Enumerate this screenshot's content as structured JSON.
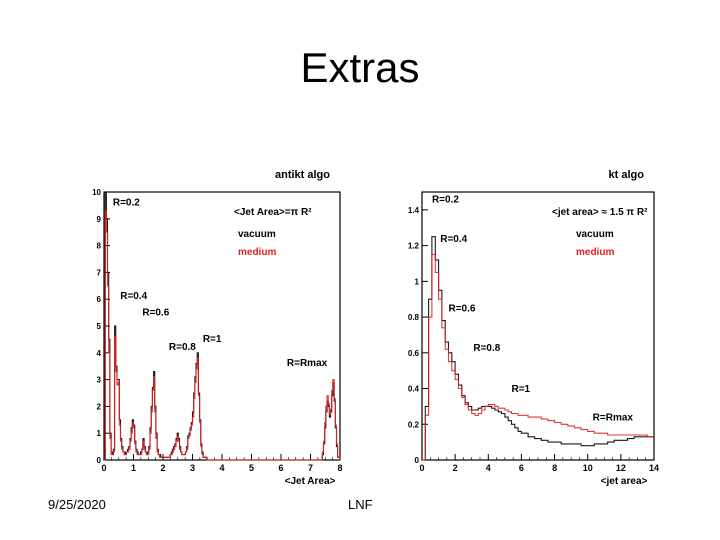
{
  "slide": {
    "title": "Extras",
    "footer_date": "9/25/2020",
    "footer_org": "LNF"
  },
  "colors": {
    "vacuum": "#000000",
    "medium": "#e02020"
  },
  "chart_data": [
    {
      "type": "line",
      "id": "antikt",
      "title": "antikt algo",
      "area_label": "<Jet Area>=π R²",
      "xlabel": "<Jet Area>",
      "ylabel": "",
      "xlim": [
        0,
        8
      ],
      "ylim": [
        0,
        10
      ],
      "xticks": [
        "0",
        "1",
        "2",
        "3",
        "4",
        "5",
        "6",
        "7",
        "8"
      ],
      "yticks": [
        "0",
        "1",
        "2",
        "3",
        "4",
        "5",
        "6",
        "7",
        "8",
        "9",
        "10"
      ],
      "legend": [
        "vacuum",
        "medium"
      ],
      "r_labels": [
        {
          "text": "R=0.2",
          "x": 0.3,
          "y": 9.5
        },
        {
          "text": "R=0.4",
          "x": 0.55,
          "y": 6.0
        },
        {
          "text": "R=0.6",
          "x": 1.3,
          "y": 5.4
        },
        {
          "text": "R=0.8",
          "x": 2.2,
          "y": 4.1
        },
        {
          "text": "R=1",
          "x": 3.35,
          "y": 4.4
        },
        {
          "text": "R=Rmax",
          "x": 6.2,
          "y": 3.5
        }
      ],
      "series": [
        {
          "name": "vacuum",
          "x": [
            0.0,
            0.04,
            0.08,
            0.12,
            0.16,
            0.2,
            0.24,
            0.28,
            0.32,
            0.36,
            0.4,
            0.44,
            0.48,
            0.52,
            0.56,
            0.6,
            0.64,
            0.68,
            0.72,
            0.76,
            0.8,
            0.84,
            0.88,
            0.92,
            0.96,
            1.0,
            1.04,
            1.08,
            1.12,
            1.16,
            1.2,
            1.24,
            1.28,
            1.32,
            1.36,
            1.4,
            1.44,
            1.48,
            1.52,
            1.56,
            1.6,
            1.64,
            1.68,
            1.72,
            1.76,
            1.8,
            1.84,
            1.88,
            1.92,
            1.96,
            2.0,
            2.04,
            2.08,
            2.12,
            2.16,
            2.2,
            2.24,
            2.28,
            2.32,
            2.36,
            2.4,
            2.44,
            2.48,
            2.52,
            2.56,
            2.6,
            2.64,
            2.68,
            2.72,
            2.76,
            2.8,
            2.84,
            2.88,
            2.92,
            2.96,
            3.0,
            3.04,
            3.08,
            3.12,
            3.16,
            3.2,
            3.24,
            3.28,
            3.32,
            3.36,
            3.4,
            3.44,
            3.48,
            3.52,
            3.56,
            3.6,
            3.64,
            3.68,
            3.72,
            3.76,
            3.8,
            3.84,
            3.88,
            3.92,
            3.96,
            4.0,
            4.4,
            4.8,
            5.2,
            5.6,
            6.0,
            6.4,
            6.8,
            7.2,
            7.4,
            7.44,
            7.48,
            7.52,
            7.56,
            7.6,
            7.64,
            7.68,
            7.72,
            7.76,
            7.8,
            7.84,
            7.88,
            7.92,
            8.0
          ],
          "y": [
            0.0,
            10.0,
            9.0,
            7.0,
            4.5,
            1.0,
            0.3,
            0.2,
            0.4,
            5.0,
            3.5,
            3.0,
            3.0,
            1.5,
            0.8,
            0.5,
            0.3,
            0.3,
            0.2,
            0.3,
            0.4,
            0.5,
            0.8,
            1.2,
            1.5,
            1.3,
            0.7,
            0.4,
            0.3,
            0.2,
            0.2,
            0.3,
            0.4,
            0.8,
            0.5,
            0.3,
            0.2,
            0.3,
            0.5,
            1.2,
            2.0,
            2.7,
            3.3,
            2.0,
            1.0,
            0.4,
            0.2,
            0.2,
            0.1,
            0.1,
            0.1,
            0.1,
            0.1,
            0.1,
            0.1,
            0.1,
            0.2,
            0.3,
            0.4,
            0.5,
            0.6,
            0.8,
            1.0,
            0.8,
            0.5,
            0.3,
            0.2,
            0.2,
            0.2,
            0.3,
            0.5,
            0.9,
            1.0,
            1.2,
            1.4,
            1.8,
            2.5,
            3.1,
            3.6,
            4.0,
            2.5,
            1.5,
            0.6,
            0.3,
            0.1,
            0.1,
            0.1,
            0.0,
            0.0,
            0.0,
            0.0,
            0.0,
            0.0,
            0.0,
            0.0,
            0.0,
            0.0,
            0.0,
            0.0,
            0.0,
            0.0,
            0.0,
            0.0,
            0.0,
            0.0,
            0.0,
            0.0,
            0.0,
            0.0,
            0.2,
            0.6,
            1.2,
            1.8,
            2.2,
            2.0,
            1.6,
            1.8,
            2.4,
            2.9,
            2.2,
            1.2,
            0.5,
            0.1,
            0.0
          ]
        },
        {
          "name": "medium",
          "x": [
            0.0,
            0.04,
            0.08,
            0.12,
            0.16,
            0.2,
            0.24,
            0.28,
            0.32,
            0.36,
            0.4,
            0.44,
            0.48,
            0.52,
            0.56,
            0.6,
            0.64,
            0.68,
            0.72,
            0.76,
            0.8,
            0.84,
            0.88,
            0.92,
            0.96,
            1.0,
            1.04,
            1.08,
            1.12,
            1.16,
            1.2,
            1.24,
            1.28,
            1.32,
            1.36,
            1.4,
            1.44,
            1.48,
            1.52,
            1.56,
            1.6,
            1.64,
            1.68,
            1.72,
            1.76,
            1.8,
            1.84,
            1.88,
            1.92,
            1.96,
            2.0,
            2.04,
            2.08,
            2.12,
            2.16,
            2.2,
            2.24,
            2.28,
            2.32,
            2.36,
            2.4,
            2.44,
            2.48,
            2.52,
            2.56,
            2.6,
            2.64,
            2.68,
            2.72,
            2.76,
            2.8,
            2.84,
            2.88,
            2.92,
            2.96,
            3.0,
            3.04,
            3.08,
            3.12,
            3.16,
            3.2,
            3.24,
            3.28,
            3.32,
            3.36,
            3.4,
            3.44,
            3.48,
            3.52,
            3.56,
            3.6,
            3.64,
            3.68,
            3.72,
            3.76,
            3.8,
            3.84,
            3.88,
            3.92,
            3.96,
            4.0,
            4.4,
            4.8,
            5.2,
            5.6,
            6.0,
            6.4,
            6.8,
            7.2,
            7.4,
            7.44,
            7.48,
            7.52,
            7.56,
            7.6,
            7.64,
            7.68,
            7.72,
            7.76,
            7.8,
            7.84,
            7.88,
            7.92,
            8.0
          ],
          "y": [
            0.0,
            9.3,
            8.5,
            6.5,
            4.0,
            0.8,
            0.2,
            0.2,
            0.3,
            4.6,
            3.3,
            2.8,
            2.9,
            1.3,
            0.7,
            0.4,
            0.3,
            0.2,
            0.2,
            0.3,
            0.3,
            0.4,
            0.7,
            1.0,
            1.4,
            1.2,
            0.6,
            0.3,
            0.2,
            0.2,
            0.2,
            0.2,
            0.4,
            0.7,
            0.4,
            0.3,
            0.2,
            0.2,
            0.4,
            1.0,
            1.8,
            2.6,
            3.1,
            1.8,
            0.8,
            0.3,
            0.2,
            0.1,
            0.1,
            0.1,
            0.1,
            0.1,
            0.1,
            0.1,
            0.1,
            0.1,
            0.2,
            0.2,
            0.3,
            0.4,
            0.5,
            0.7,
            0.9,
            0.7,
            0.4,
            0.3,
            0.2,
            0.2,
            0.2,
            0.3,
            0.4,
            0.8,
            0.9,
            1.1,
            1.3,
            1.6,
            2.3,
            2.9,
            3.4,
            3.8,
            2.4,
            1.4,
            0.5,
            0.2,
            0.1,
            0.1,
            0.1,
            0.0,
            0.0,
            0.0,
            0.0,
            0.0,
            0.0,
            0.0,
            0.0,
            0.0,
            0.0,
            0.0,
            0.0,
            0.0,
            0.0,
            0.0,
            0.0,
            0.0,
            0.0,
            0.0,
            0.0,
            0.0,
            0.0,
            0.3,
            0.7,
            1.4,
            2.0,
            2.4,
            2.1,
            1.7,
            1.9,
            2.6,
            3.0,
            2.3,
            1.3,
            0.6,
            0.1,
            0.0
          ]
        }
      ]
    },
    {
      "type": "line",
      "id": "kt",
      "title": "kt algo",
      "area_label": "<jet area> ≈ 1.5 π R²",
      "xlabel": "<jet area>",
      "ylabel": "",
      "xlim": [
        0,
        14
      ],
      "ylim": [
        0,
        1.5
      ],
      "xticks": [
        "0",
        "2",
        "4",
        "6",
        "8",
        "10",
        "12",
        "14"
      ],
      "yticks": [
        "0",
        "0.2",
        "0.4",
        "0.6",
        "0.8",
        "1",
        "1.2",
        "1.4"
      ],
      "legend": [
        "vacuum",
        "medium"
      ],
      "r_labels": [
        {
          "text": "R=0.2",
          "x": 0.6,
          "y": 1.44
        },
        {
          "text": "R=0.4",
          "x": 1.1,
          "y": 1.22
        },
        {
          "text": "R=0.6",
          "x": 1.6,
          "y": 0.83
        },
        {
          "text": "R=0.8",
          "x": 3.1,
          "y": 0.61
        },
        {
          "text": "R=1",
          "x": 5.4,
          "y": 0.38
        },
        {
          "text": "R=Rmax",
          "x": 10.3,
          "y": 0.22
        }
      ],
      "series": [
        {
          "name": "vacuum",
          "x": [
            0.0,
            0.2,
            0.4,
            0.6,
            0.8,
            1.0,
            1.2,
            1.4,
            1.6,
            1.8,
            2.0,
            2.2,
            2.4,
            2.6,
            2.8,
            3.0,
            3.2,
            3.4,
            3.6,
            3.8,
            4.0,
            4.2,
            4.4,
            4.6,
            4.8,
            5.0,
            5.2,
            5.4,
            5.6,
            5.8,
            6.0,
            6.4,
            6.8,
            7.2,
            7.6,
            8.0,
            8.4,
            8.8,
            9.2,
            9.6,
            10.0,
            10.4,
            10.8,
            11.2,
            11.6,
            12.0,
            12.4,
            12.8,
            13.2,
            13.6,
            14.0
          ],
          "y": [
            0.0,
            0.3,
            0.9,
            1.25,
            1.12,
            0.95,
            0.78,
            0.66,
            0.6,
            0.55,
            0.48,
            0.42,
            0.36,
            0.32,
            0.3,
            0.28,
            0.28,
            0.29,
            0.3,
            0.3,
            0.3,
            0.29,
            0.28,
            0.27,
            0.26,
            0.24,
            0.22,
            0.2,
            0.18,
            0.16,
            0.15,
            0.13,
            0.12,
            0.11,
            0.1,
            0.1,
            0.09,
            0.09,
            0.09,
            0.08,
            0.08,
            0.09,
            0.09,
            0.1,
            0.11,
            0.11,
            0.12,
            0.13,
            0.13,
            0.13,
            0.12
          ]
        },
        {
          "name": "medium",
          "x": [
            0.0,
            0.2,
            0.4,
            0.6,
            0.8,
            1.0,
            1.2,
            1.4,
            1.6,
            1.8,
            2.0,
            2.2,
            2.4,
            2.6,
            2.8,
            3.0,
            3.2,
            3.4,
            3.6,
            3.8,
            4.0,
            4.2,
            4.4,
            4.6,
            4.8,
            5.0,
            5.2,
            5.4,
            5.6,
            5.8,
            6.0,
            6.4,
            6.8,
            7.2,
            7.6,
            8.0,
            8.4,
            8.8,
            9.2,
            9.6,
            10.0,
            10.4,
            10.8,
            11.2,
            11.6,
            12.0,
            12.4,
            12.8,
            13.2,
            13.6,
            14.0
          ],
          "y": [
            0.0,
            0.25,
            0.8,
            1.15,
            1.05,
            0.9,
            0.74,
            0.62,
            0.55,
            0.5,
            0.45,
            0.4,
            0.35,
            0.31,
            0.28,
            0.26,
            0.25,
            0.26,
            0.28,
            0.3,
            0.31,
            0.31,
            0.3,
            0.29,
            0.29,
            0.28,
            0.27,
            0.26,
            0.26,
            0.25,
            0.25,
            0.24,
            0.24,
            0.23,
            0.22,
            0.21,
            0.2,
            0.19,
            0.18,
            0.17,
            0.16,
            0.15,
            0.15,
            0.14,
            0.14,
            0.14,
            0.14,
            0.14,
            0.14,
            0.13,
            0.13
          ]
        }
      ]
    }
  ]
}
